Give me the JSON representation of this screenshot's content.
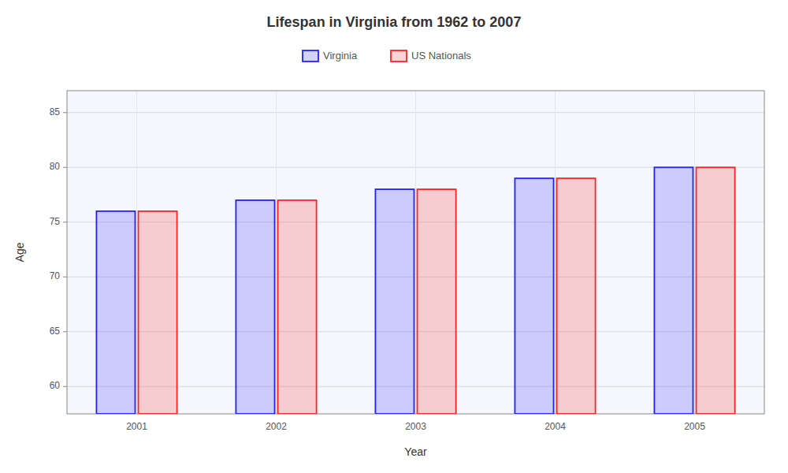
{
  "chart_data": {
    "type": "bar",
    "title": "Lifespan in Virginia from 1962 to 2007",
    "x_label": "Year",
    "y_label": "Age",
    "categories": [
      "2001",
      "2002",
      "2003",
      "2004",
      "2005"
    ],
    "series": [
      {
        "name": "Virginia",
        "color": "#2222ff",
        "values": [
          76,
          77,
          78,
          79,
          80
        ]
      },
      {
        "name": "US Nationals",
        "color": "#ff2222",
        "values": [
          76,
          77,
          78,
          79,
          80
        ]
      }
    ],
    "ylim": [
      57.5,
      87
    ],
    "yticks": [
      60,
      65,
      70,
      75,
      80,
      85
    ],
    "grid": true,
    "legend": "top"
  }
}
